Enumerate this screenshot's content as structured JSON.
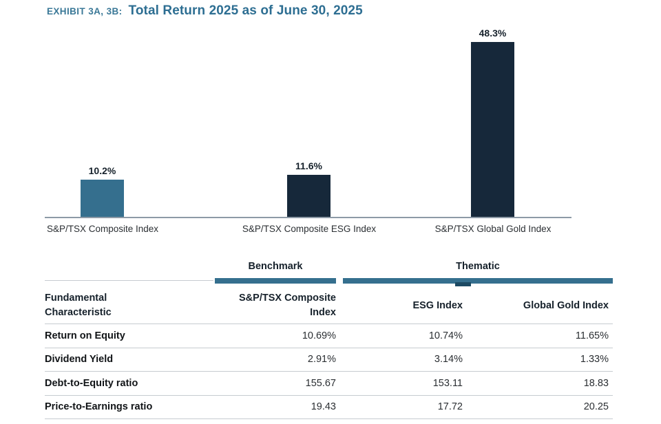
{
  "header": {
    "exhibit_label": "EXHIBIT 3A, 3B:",
    "title": "Total Return 2025 as of June 30, 2025"
  },
  "colors": {
    "accent_teal": "#356f8e",
    "dark_navy": "#16283a",
    "title_teal": "#2d6e92",
    "axis_gray": "#8d9aa6",
    "rule_gray": "#c6cbd0"
  },
  "chart_data": {
    "type": "bar",
    "title": "Total Return 2025 as of June 30, 2025",
    "categories": [
      "S&P/TSX Composite Index",
      "S&P/TSX Composite ESG Index",
      "S&P/TSX Global Gold Index"
    ],
    "values": [
      10.2,
      11.6,
      48.3
    ],
    "value_labels": [
      "10.2%",
      "11.6%",
      "48.3%"
    ],
    "bar_colors": [
      "#356f8e",
      "#16283a",
      "#16283a"
    ],
    "xlabel": "",
    "ylabel": "",
    "ylim": [
      0,
      50
    ],
    "grid": false,
    "legend": "none",
    "data_labels": "above bars"
  },
  "table": {
    "type": "table",
    "group_headers": [
      {
        "label": "Benchmark"
      },
      {
        "label": "Thematic"
      }
    ],
    "columns": [
      "Fundamental Characteristic",
      "S&P/TSX Composite Index",
      "ESG Index",
      "Global Gold Index"
    ],
    "rows": [
      {
        "label": "Return on Equity",
        "values": [
          "10.69%",
          "10.74%",
          "11.65%"
        ]
      },
      {
        "label": "Dividend Yield",
        "values": [
          "2.91%",
          "3.14%",
          "1.33%"
        ]
      },
      {
        "label": "Debt-to-Equity ratio",
        "values": [
          "155.67",
          "153.11",
          "18.83"
        ]
      },
      {
        "label": "Price-to-Earnings ratio",
        "values": [
          "19.43",
          "17.72",
          "20.25"
        ]
      }
    ]
  }
}
